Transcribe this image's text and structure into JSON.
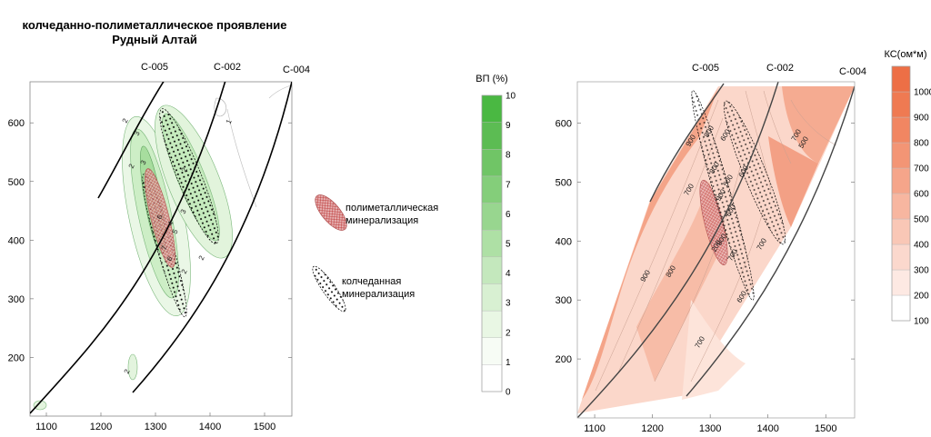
{
  "title": {
    "line1": "колчеданно-полиметаллическое проявление",
    "line2": "Рудный Алтай"
  },
  "chart_data": [
    {
      "type": "contour",
      "x_ticks": [
        1100,
        1200,
        1300,
        1400,
        1500
      ],
      "y_ticks": [
        200,
        300,
        400,
        500,
        600
      ],
      "xlim": [
        1070,
        1550
      ],
      "ylim": [
        100,
        670
      ],
      "wells": [
        "С-005",
        "С-002",
        "С-004"
      ],
      "contour_labels": [
        "2",
        "3",
        "2",
        "3",
        "6",
        "7",
        "6",
        "4",
        "5",
        "2",
        "3",
        "2",
        "2",
        "2",
        "1"
      ],
      "colorbar": {
        "title": "ВП (%)",
        "ticks": [
          "0",
          "1",
          "2",
          "3",
          "4",
          "5",
          "6",
          "7",
          "8",
          "9",
          "10"
        ],
        "colors": [
          "#ffffff",
          "#f7fcf5",
          "#e9f7e4",
          "#d8f0d2",
          "#c4e8bd",
          "#aee0a5",
          "#98d68f",
          "#84ce7a",
          "#70c566",
          "#5cbc53",
          "#4ab842"
        ]
      },
      "legend": [
        {
          "label_line1": "полиметаллическая",
          "label_line2": "минерализация",
          "pattern": "crosshatch-red"
        },
        {
          "label_line1": "колчеданная",
          "label_line2": "минерализация",
          "pattern": "dots-black"
        }
      ]
    },
    {
      "type": "contour",
      "x_ticks": [
        1100,
        1200,
        1300,
        1400,
        1500
      ],
      "y_ticks": [
        200,
        300,
        400,
        500,
        600
      ],
      "xlim": [
        1070,
        1550
      ],
      "ylim": [
        100,
        670
      ],
      "wells": [
        "С-005",
        "С-002",
        "С-004"
      ],
      "contour_labels": [
        "900",
        "800",
        "700",
        "600",
        "500",
        "800",
        "900",
        "600",
        "700",
        "800",
        "200",
        "700",
        "900",
        "800",
        "600",
        "700",
        "500",
        "600",
        "700"
      ],
      "colorbar": {
        "title": "КС(ом*м)",
        "ticks": [
          "100",
          "200",
          "300",
          "400",
          "500",
          "600",
          "700",
          "800",
          "900",
          "1000"
        ],
        "colors": [
          "#ffffff",
          "#fde9e3",
          "#fbd8cd",
          "#f9c7b6",
          "#f7b6a0",
          "#f5a58a",
          "#f39575",
          "#f18662",
          "#ef7a52",
          "#ed6f46"
        ]
      }
    }
  ]
}
